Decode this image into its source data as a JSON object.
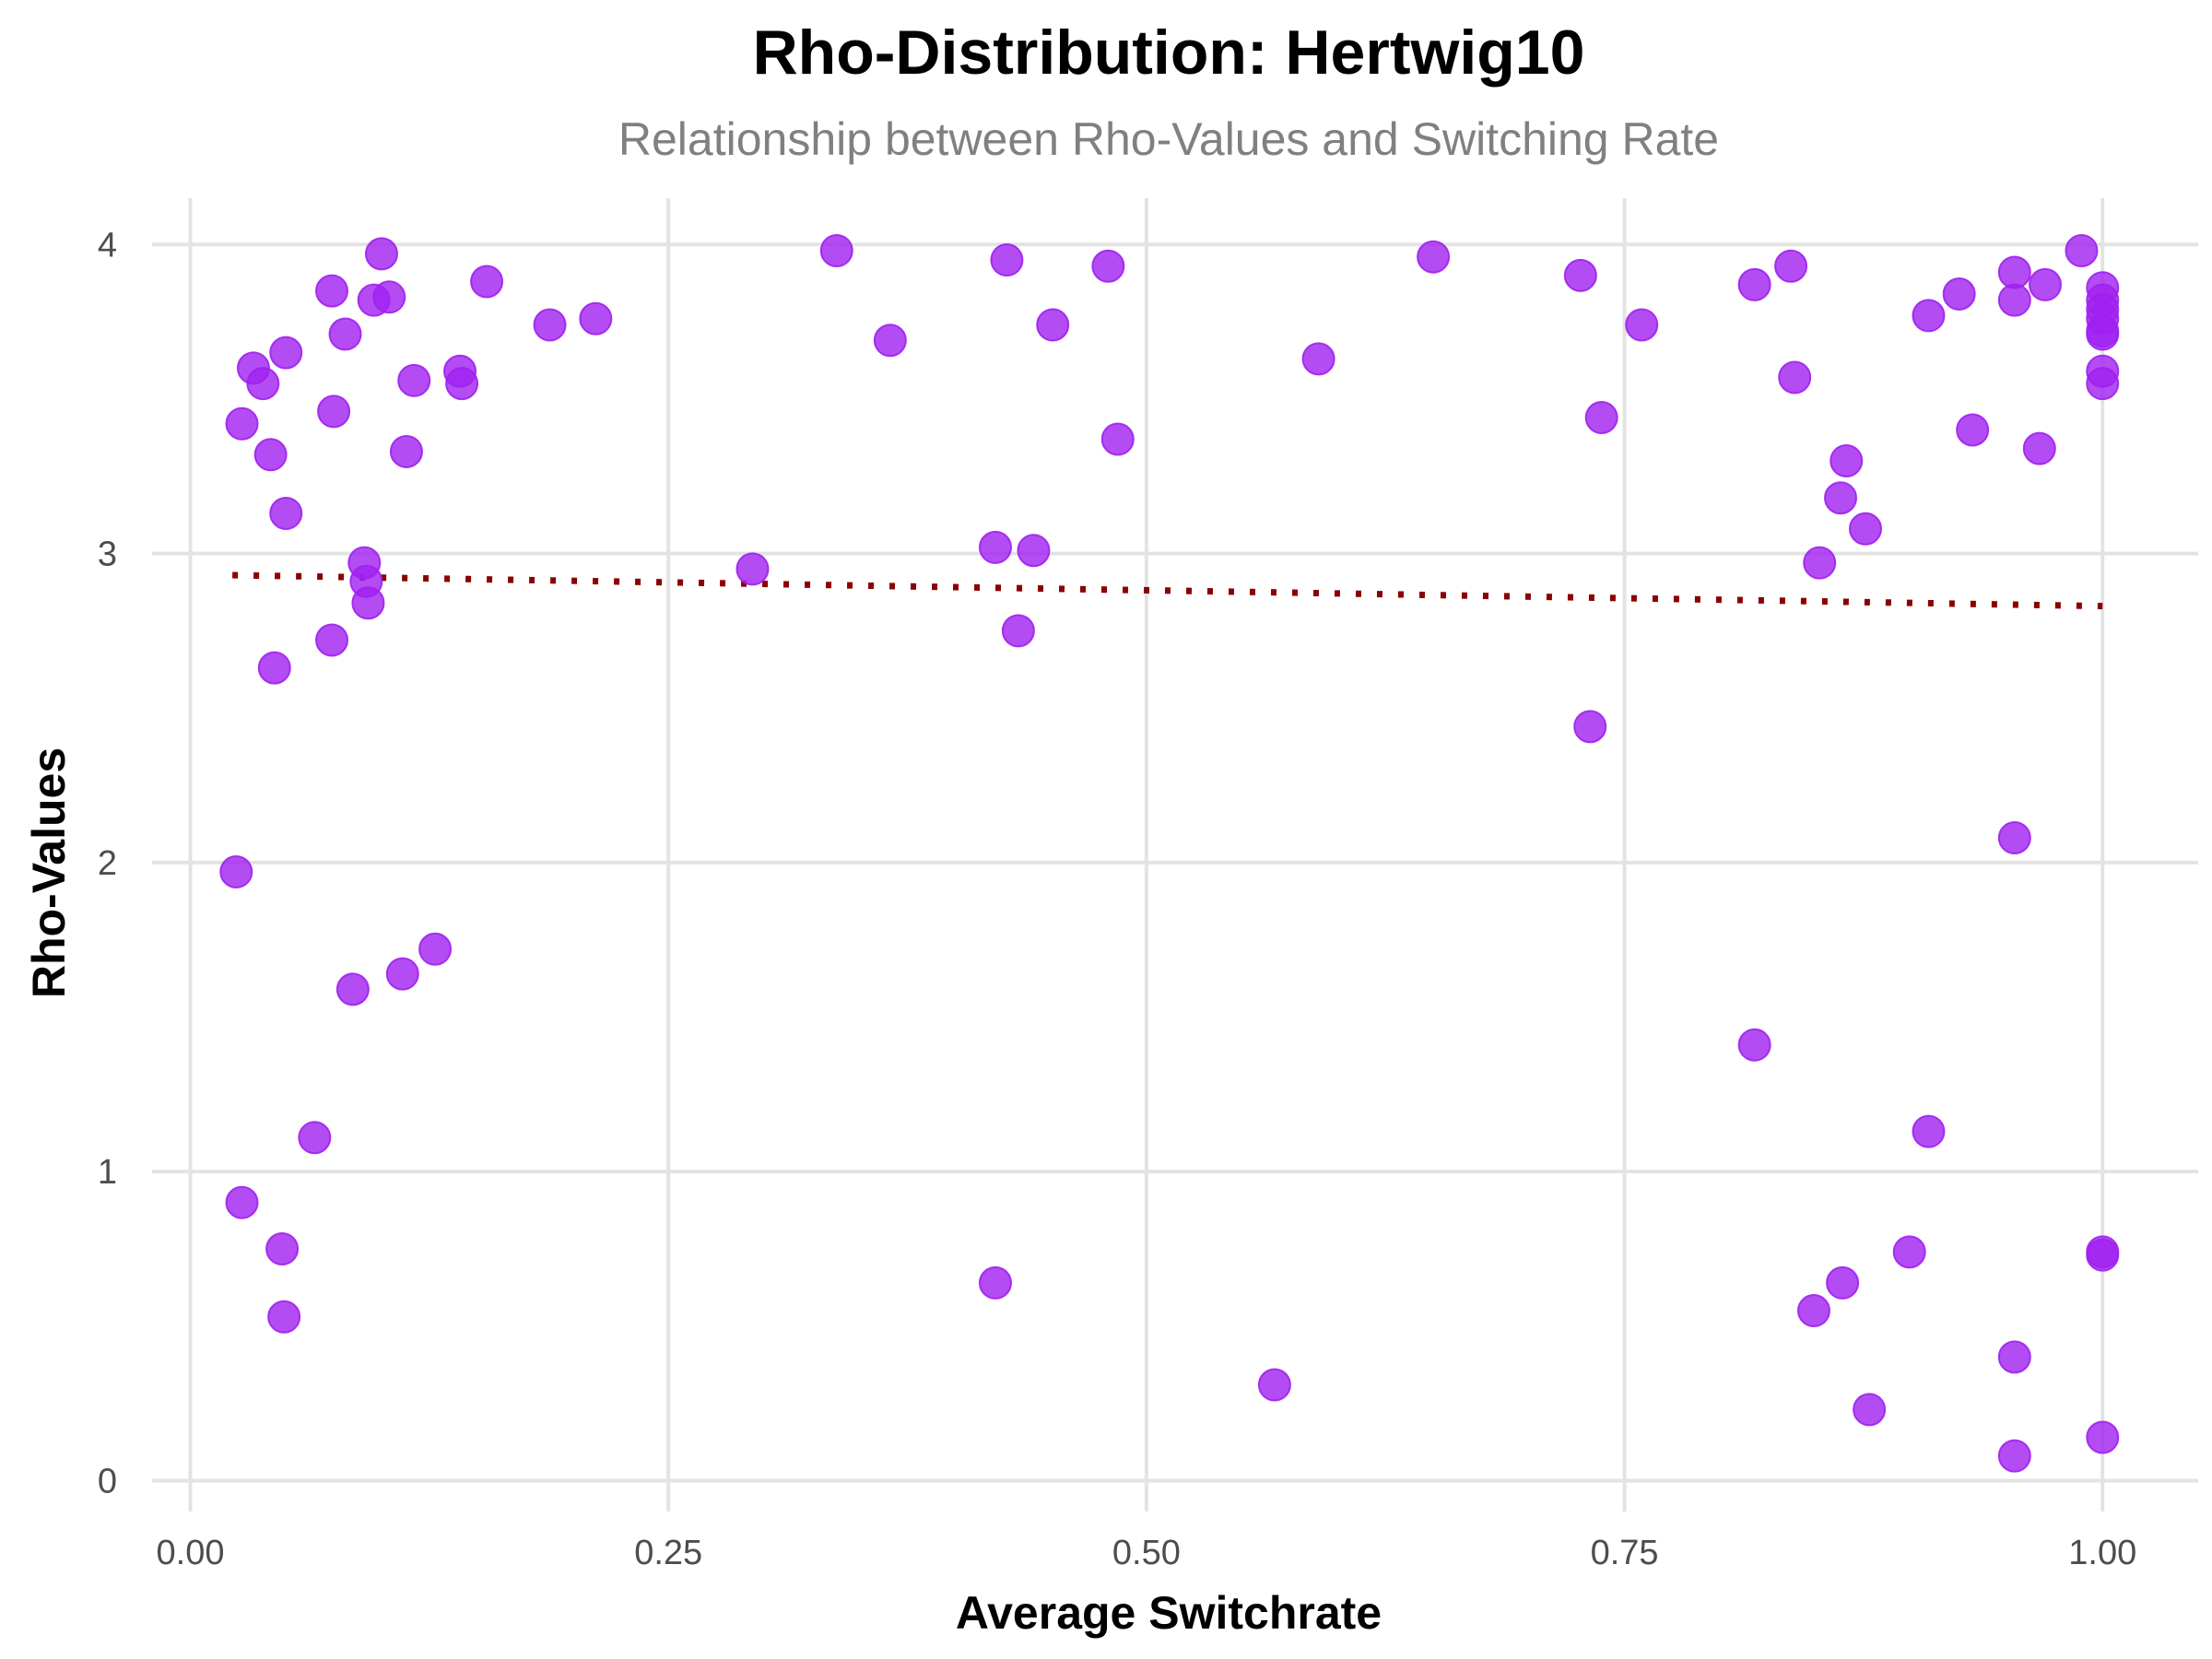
{
  "chart_data": {
    "type": "scatter",
    "title": "Rho-Distribution: Hertwig10",
    "subtitle": "Relationship between Rho-Values and Switching Rate",
    "xlabel": "Average Switchrate",
    "ylabel": "Rho-Values",
    "xlim": [
      -0.02,
      1.05
    ],
    "ylim": [
      -0.1,
      4.15
    ],
    "x_ticks": [
      0.0,
      0.25,
      0.5,
      0.75,
      1.0
    ],
    "x_tick_labels": [
      "0.00",
      "0.25",
      "0.50",
      "0.75",
      "1.00"
    ],
    "y_ticks": [
      0,
      1,
      2,
      3,
      4
    ],
    "y_tick_labels": [
      "0",
      "1",
      "2",
      "3",
      "4"
    ],
    "grid": true,
    "point_color": "#a020f0",
    "trend_color": "#8b0000",
    "trend_style": "dotted",
    "trend_line": {
      "x": [
        0.022,
        1.0
      ],
      "y": [
        2.93,
        2.83
      ]
    },
    "points": [
      {
        "x": 0.027,
        "y": 3.42
      },
      {
        "x": 0.033,
        "y": 3.6
      },
      {
        "x": 0.038,
        "y": 3.55
      },
      {
        "x": 0.05,
        "y": 3.65
      },
      {
        "x": 0.042,
        "y": 3.32
      },
      {
        "x": 0.05,
        "y": 3.13
      },
      {
        "x": 0.044,
        "y": 2.63
      },
      {
        "x": 0.074,
        "y": 3.85
      },
      {
        "x": 0.081,
        "y": 3.71
      },
      {
        "x": 0.075,
        "y": 3.46
      },
      {
        "x": 0.096,
        "y": 3.82
      },
      {
        "x": 0.1,
        "y": 3.97
      },
      {
        "x": 0.104,
        "y": 3.83
      },
      {
        "x": 0.117,
        "y": 3.56
      },
      {
        "x": 0.113,
        "y": 3.33
      },
      {
        "x": 0.141,
        "y": 3.59
      },
      {
        "x": 0.142,
        "y": 3.55
      },
      {
        "x": 0.155,
        "y": 3.88
      },
      {
        "x": 0.188,
        "y": 3.74
      },
      {
        "x": 0.212,
        "y": 3.76
      },
      {
        "x": 0.091,
        "y": 2.97
      },
      {
        "x": 0.092,
        "y": 2.91
      },
      {
        "x": 0.093,
        "y": 2.84
      },
      {
        "x": 0.074,
        "y": 2.72
      },
      {
        "x": 0.024,
        "y": 1.97
      },
      {
        "x": 0.085,
        "y": 1.59
      },
      {
        "x": 0.111,
        "y": 1.64
      },
      {
        "x": 0.128,
        "y": 1.72
      },
      {
        "x": 0.065,
        "y": 1.11
      },
      {
        "x": 0.027,
        "y": 0.9
      },
      {
        "x": 0.048,
        "y": 0.75
      },
      {
        "x": 0.049,
        "y": 0.53
      },
      {
        "x": 0.294,
        "y": 2.95
      },
      {
        "x": 0.338,
        "y": 3.98
      },
      {
        "x": 0.366,
        "y": 3.69
      },
      {
        "x": 0.427,
        "y": 3.95
      },
      {
        "x": 0.451,
        "y": 3.74
      },
      {
        "x": 0.48,
        "y": 3.93
      },
      {
        "x": 0.485,
        "y": 3.37
      },
      {
        "x": 0.421,
        "y": 3.02
      },
      {
        "x": 0.441,
        "y": 3.01
      },
      {
        "x": 0.433,
        "y": 2.75
      },
      {
        "x": 0.421,
        "y": 0.64
      },
      {
        "x": 0.567,
        "y": 0.31
      },
      {
        "x": 0.59,
        "y": 3.63
      },
      {
        "x": 0.65,
        "y": 3.96
      },
      {
        "x": 0.727,
        "y": 3.9
      },
      {
        "x": 0.759,
        "y": 3.74
      },
      {
        "x": 0.738,
        "y": 3.44
      },
      {
        "x": 0.732,
        "y": 2.44
      },
      {
        "x": 0.818,
        "y": 3.87
      },
      {
        "x": 0.837,
        "y": 3.93
      },
      {
        "x": 0.839,
        "y": 3.57
      },
      {
        "x": 0.866,
        "y": 3.3
      },
      {
        "x": 0.863,
        "y": 3.18
      },
      {
        "x": 0.876,
        "y": 3.08
      },
      {
        "x": 0.852,
        "y": 2.97
      },
      {
        "x": 0.818,
        "y": 1.41
      },
      {
        "x": 0.849,
        "y": 0.55
      },
      {
        "x": 0.864,
        "y": 0.64
      },
      {
        "x": 0.878,
        "y": 0.23
      },
      {
        "x": 0.899,
        "y": 0.74
      },
      {
        "x": 0.909,
        "y": 3.77
      },
      {
        "x": 0.925,
        "y": 3.84
      },
      {
        "x": 0.932,
        "y": 3.4
      },
      {
        "x": 0.909,
        "y": 1.13
      },
      {
        "x": 0.954,
        "y": 3.91
      },
      {
        "x": 0.954,
        "y": 3.82
      },
      {
        "x": 0.97,
        "y": 3.87
      },
      {
        "x": 0.967,
        "y": 3.34
      },
      {
        "x": 0.989,
        "y": 3.98
      },
      {
        "x": 0.954,
        "y": 2.08
      },
      {
        "x": 0.954,
        "y": 0.4
      },
      {
        "x": 0.954,
        "y": 0.08
      },
      {
        "x": 1.0,
        "y": 3.86
      },
      {
        "x": 1.0,
        "y": 3.82
      },
      {
        "x": 1.0,
        "y": 3.79
      },
      {
        "x": 1.0,
        "y": 3.76
      },
      {
        "x": 1.0,
        "y": 3.72
      },
      {
        "x": 1.0,
        "y": 3.71
      },
      {
        "x": 1.0,
        "y": 3.59
      },
      {
        "x": 1.0,
        "y": 3.55
      },
      {
        "x": 1.0,
        "y": 0.73
      },
      {
        "x": 1.0,
        "y": 0.74
      },
      {
        "x": 1.0,
        "y": 0.14
      }
    ]
  }
}
